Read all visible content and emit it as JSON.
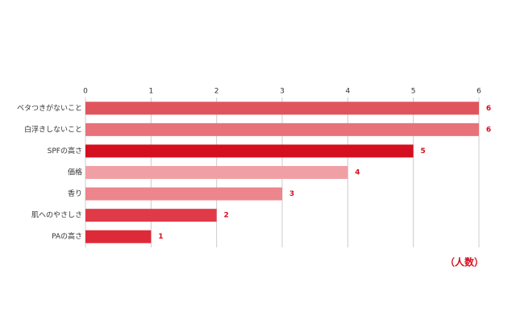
{
  "chart_data": {
    "type": "bar",
    "orientation": "horizontal",
    "categories": [
      "ベタつきがないこと",
      "白浮きしないこと",
      "SPFの高さ",
      "価格",
      "香り",
      "肌へのやさしさ",
      "PAの高さ"
    ],
    "values": [
      6,
      6,
      5,
      4,
      3,
      2,
      1
    ],
    "colors": [
      "#e0545e",
      "#e8727a",
      "#d40f1f",
      "#f0a0a5",
      "#ec858c",
      "#e03a48",
      "#de2a38"
    ],
    "xlim": [
      0,
      6
    ],
    "xticks": [
      0,
      1,
      2,
      3,
      4,
      5,
      6
    ],
    "grid": true,
    "unit_label": "（人数）"
  }
}
